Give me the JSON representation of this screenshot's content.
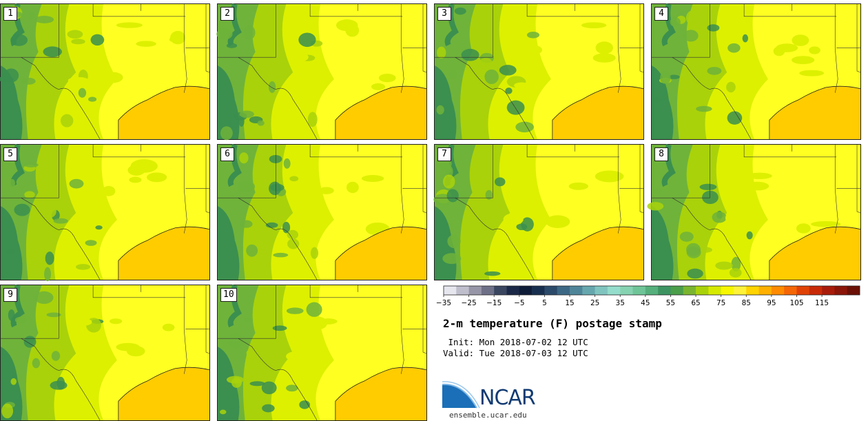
{
  "panels": [
    {
      "label": "1"
    },
    {
      "label": "2"
    },
    {
      "label": "3"
    },
    {
      "label": "4"
    },
    {
      "label": "5"
    },
    {
      "label": "6"
    },
    {
      "label": "7"
    },
    {
      "label": "8"
    },
    {
      "label": "9"
    },
    {
      "label": "10"
    }
  ],
  "colorbar": {
    "tick_labels": [
      "−35",
      "−25",
      "−15",
      "−5",
      "5",
      "15",
      "25",
      "35",
      "45",
      "55",
      "65",
      "75",
      "85",
      "95",
      "105",
      "115"
    ],
    "colors": [
      "#e6e6ef",
      "#bebecd",
      "#9696a8",
      "#6e7088",
      "#3a4560",
      "#1b2847",
      "#0f1c38",
      "#182e4f",
      "#2b4a6a",
      "#3d6885",
      "#4f8599",
      "#66a7ad",
      "#80c4bf",
      "#94dccb",
      "#86d3b1",
      "#6fc597",
      "#55b07c",
      "#3d9461",
      "#4b9e4a",
      "#7ab52f",
      "#a9d20a",
      "#d6ea00",
      "#f7f700",
      "#fff23a",
      "#ffd400",
      "#ffb000",
      "#ff8b00",
      "#f46606",
      "#e04206",
      "#c82a08",
      "#a81b0a",
      "#8a1508",
      "#6a1006"
    ]
  },
  "title": "2-m temperature (F) postage stamp",
  "init_line": " Init: Mon 2018-07-02 12 UTC",
  "valid_line": "Valid: Tue 2018-07-03 12 UTC",
  "logo": {
    "text": "NCAR",
    "url": "ensemble.ucar.edu"
  },
  "palette": {
    "hot": "#ffff22",
    "warm": "#ddf000",
    "mild": "#a9d20a",
    "cool": "#6fb33a",
    "cold": "#3b8f4f",
    "gulf": "#ffcc00",
    "border": "#222222"
  }
}
